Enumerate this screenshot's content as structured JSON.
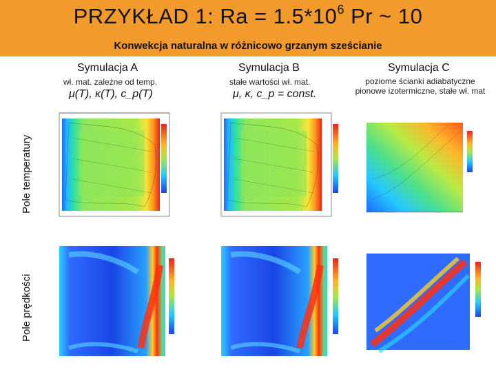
{
  "header": {
    "title_main": "PRZYKŁAD 1:  Ra = 1.5*10",
    "title_exp": "6",
    "title_tail": "  Pr ~ 10",
    "subtitle": "Konwekcja naturalna w różnicowo grzanym sześcianie"
  },
  "columns": [
    {
      "title": "Symulacja A",
      "desc": "wł. mat. zależne od temp.",
      "formula": "μ(T), κ(T), c_p(T)"
    },
    {
      "title": "Symulacja B",
      "desc": "stałe wartości wł. mat.",
      "formula": "μ, κ, c_p = const."
    },
    {
      "title": "Symulacja C",
      "desc": "poziome ścianki adiabatyczne\npionowe izotermiczne, stałe wł. mat"
    }
  ],
  "row_labels": {
    "temperature": "Pole temperatury",
    "velocity": "Pole prędkości"
  },
  "colors": {
    "header_bg": "#f39a2c"
  }
}
